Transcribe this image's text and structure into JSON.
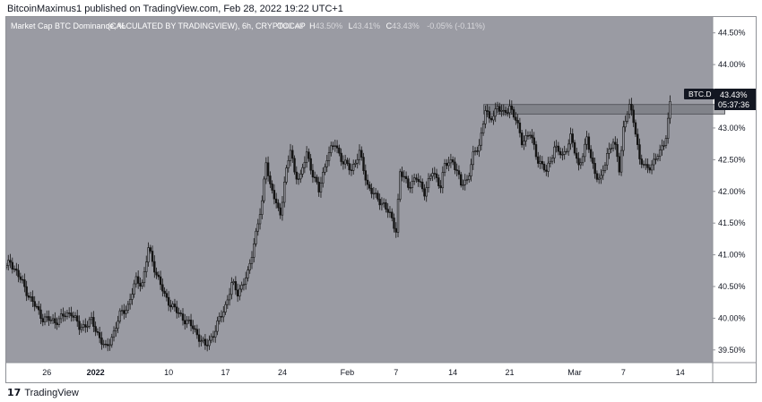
{
  "header": {
    "publisher_line": "BitcoinMaximus1 published on TradingView.com, Feb 28, 2022 19:22 UTC+1"
  },
  "footer": {
    "logo_mark": "17",
    "logo_text": "TradingView"
  },
  "colors": {
    "plot_bg": "#9a9ba3",
    "axis_bg": "#ffffff",
    "candle": "#141414",
    "resistance_box": "#6e6f76",
    "price_tag_bg": "#131722",
    "price_tag_text": "#ffffff"
  },
  "chart_data": {
    "type": "candlestick",
    "title": "Market Cap BTC Dominance, %",
    "source": "(CALCULATED BY TRADINGVIEW), 6h, CRYPTOCAP",
    "legend": {
      "open_label": "O",
      "open": "43.48",
      "high_label": "H",
      "high": "43.50%",
      "low_label": "L",
      "low": "43.41%",
      "close_label": "C",
      "close": "43.43%",
      "change": "-0.05% (-0.11%)"
    },
    "symbol": "BTC.D",
    "last_price": "43.43%",
    "countdown": "05:37:36",
    "y_ticks": [
      "39.50%",
      "40.00%",
      "40.50%",
      "41.00%",
      "41.50%",
      "42.00%",
      "42.50%",
      "43.00%",
      "43.50%",
      "44.00%",
      "44.50%"
    ],
    "y_tick_values": [
      39.5,
      40.0,
      40.5,
      41.0,
      41.5,
      42.0,
      42.5,
      43.0,
      43.5,
      44.0,
      44.5
    ],
    "x_ticks": [
      "26",
      "2022",
      "10",
      "17",
      "24",
      "Feb",
      "7",
      "14",
      "21",
      "Mar",
      "7",
      "14"
    ],
    "x_tick_days": [
      0,
      6,
      15,
      22,
      29,
      37,
      43,
      50,
      57,
      65,
      71,
      78
    ],
    "ylim": [
      39.3,
      44.75
    ],
    "day_range": [
      -5,
      82
    ],
    "price_path": [
      [
        -5,
        40.8
      ],
      [
        -4.5,
        40.9
      ],
      [
        -3,
        40.55
      ],
      [
        -2,
        40.3
      ],
      [
        -0.5,
        40.0
      ],
      [
        1,
        39.95
      ],
      [
        3,
        40.1
      ],
      [
        4,
        39.85
      ],
      [
        5.5,
        39.95
      ],
      [
        6.5,
        39.7
      ],
      [
        7.3,
        39.5
      ],
      [
        8.3,
        39.8
      ],
      [
        9,
        40.05
      ],
      [
        10,
        40.2
      ],
      [
        11,
        40.6
      ],
      [
        11.8,
        40.55
      ],
      [
        12.5,
        41.1
      ],
      [
        13.5,
        40.7
      ],
      [
        14.5,
        40.35
      ],
      [
        16,
        40.1
      ],
      [
        18,
        39.85
      ],
      [
        19.5,
        39.55
      ],
      [
        20.5,
        39.75
      ],
      [
        22,
        40.2
      ],
      [
        22.8,
        40.55
      ],
      [
        23.5,
        40.4
      ],
      [
        24.8,
        40.7
      ],
      [
        25.5,
        41.2
      ],
      [
        26,
        41.5
      ],
      [
        26.5,
        41.8
      ],
      [
        27,
        42.5
      ],
      [
        27.5,
        42.1
      ],
      [
        28,
        41.9
      ],
      [
        28.7,
        41.6
      ],
      [
        29.3,
        42.2
      ],
      [
        30,
        42.65
      ],
      [
        30.5,
        42.3
      ],
      [
        31.2,
        42.2
      ],
      [
        32,
        42.6
      ],
      [
        32.7,
        42.3
      ],
      [
        33.5,
        42.0
      ],
      [
        34.5,
        42.55
      ],
      [
        35.5,
        42.75
      ],
      [
        36.5,
        42.45
      ],
      [
        37.5,
        42.35
      ],
      [
        38.5,
        42.6
      ],
      [
        39.5,
        42.1
      ],
      [
        40.5,
        41.9
      ],
      [
        41.5,
        41.8
      ],
      [
        42.5,
        41.55
      ],
      [
        43,
        41.4
      ],
      [
        43.5,
        42.3
      ],
      [
        44.5,
        42.1
      ],
      [
        45.5,
        42.2
      ],
      [
        46.5,
        42.0
      ],
      [
        47.5,
        42.3
      ],
      [
        48.5,
        42.1
      ],
      [
        49,
        42.4
      ],
      [
        50,
        42.5
      ],
      [
        51,
        42.1
      ],
      [
        51.8,
        42.2
      ],
      [
        52.5,
        42.55
      ],
      [
        53.3,
        42.75
      ],
      [
        54,
        43.3
      ],
      [
        54.5,
        43.1
      ],
      [
        55.5,
        43.35
      ],
      [
        56.2,
        43.2
      ],
      [
        57,
        43.35
      ],
      [
        57.8,
        43.1
      ],
      [
        58.5,
        42.8
      ],
      [
        59.5,
        42.9
      ],
      [
        60.5,
        42.5
      ],
      [
        61.5,
        42.3
      ],
      [
        62.5,
        42.7
      ],
      [
        63.5,
        42.55
      ],
      [
        64.5,
        42.85
      ],
      [
        65.5,
        42.4
      ],
      [
        66.5,
        42.8
      ],
      [
        67.5,
        42.3
      ],
      [
        68.2,
        42.15
      ],
      [
        69,
        42.6
      ],
      [
        69.8,
        42.8
      ],
      [
        70.5,
        42.35
      ],
      [
        71,
        43.0
      ],
      [
        71.7,
        43.35
      ],
      [
        72.4,
        43.05
      ],
      [
        73,
        42.5
      ],
      [
        73.8,
        42.35
      ],
      [
        74.6,
        42.45
      ],
      [
        75.5,
        42.6
      ],
      [
        76.3,
        42.9
      ],
      [
        76.8,
        43.45
      ]
    ],
    "resistance_zone": {
      "x_start": 53.8,
      "x_end": 83.5,
      "y_low": 43.22,
      "y_high": 43.37
    },
    "grid": false
  }
}
